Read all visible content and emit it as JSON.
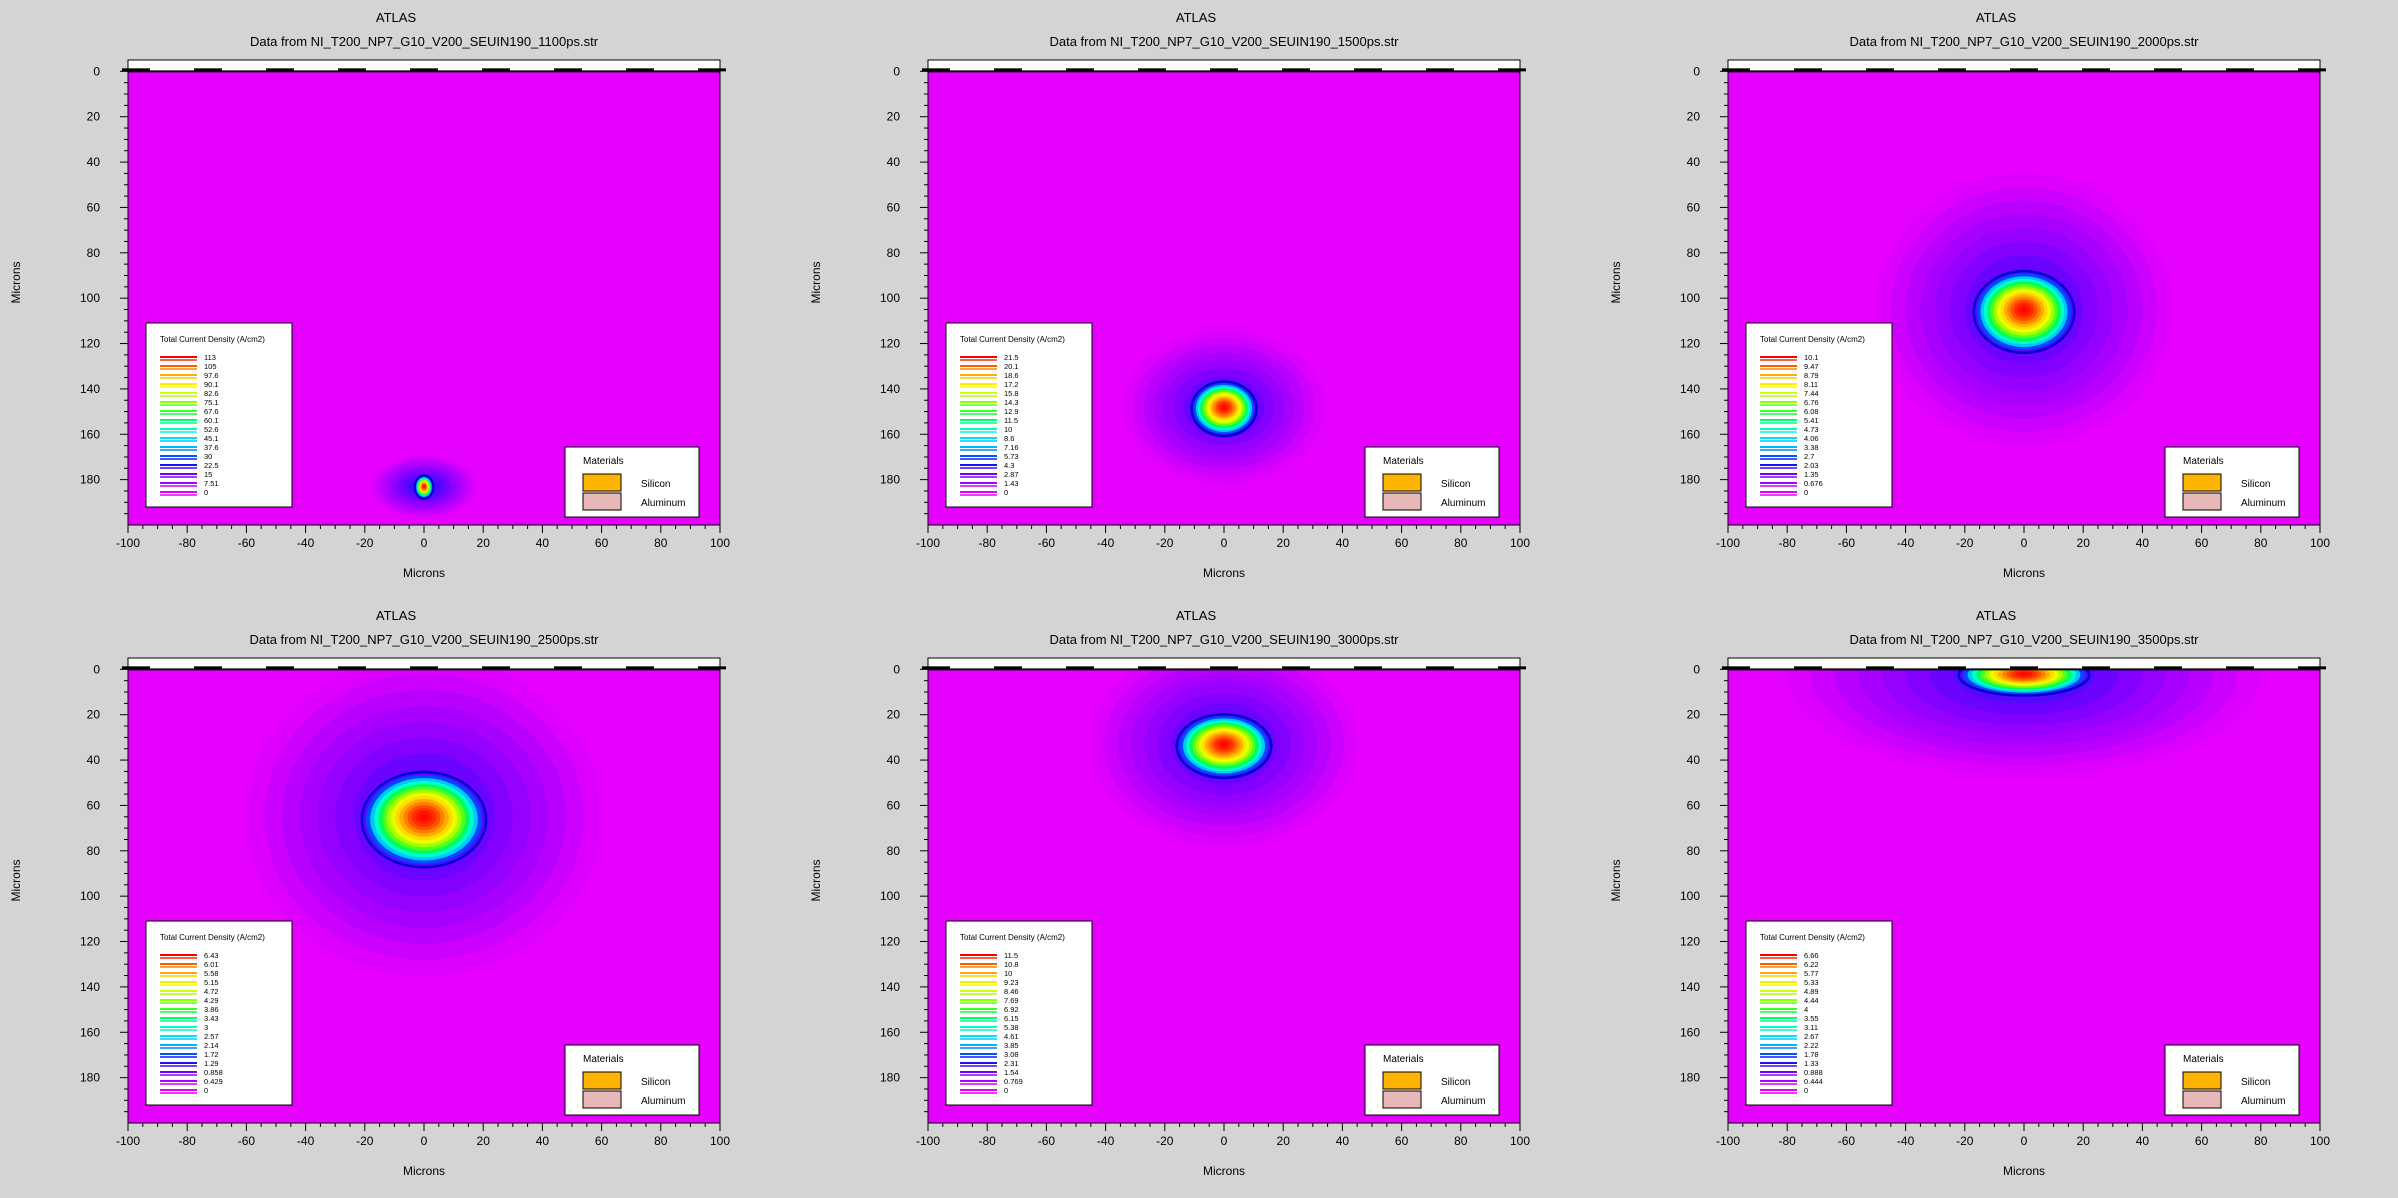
{
  "colors": {
    "background": "#d4d4d4",
    "silicon": "#ffb400",
    "aluminum": "#e8b8b8",
    "base_field": "#e600ff"
  },
  "legend_title": "Materials",
  "materials": [
    "Silicon",
    "Aluminum"
  ],
  "chart_data": [
    {
      "type": "heatmap",
      "program": "ATLAS",
      "title": "Data from NI_T200_NP7_G10_V200_SEUIN190_1100ps.str",
      "xlabel": "Microns",
      "ylabel": "Microns",
      "xlim": [
        -100,
        100
      ],
      "ylim": [
        200,
        -5
      ],
      "xticks": [
        -100,
        -80,
        -60,
        -40,
        -20,
        0,
        20,
        40,
        60,
        80,
        100
      ],
      "yticks": [
        0,
        20,
        40,
        60,
        80,
        100,
        120,
        140,
        160,
        180
      ],
      "colorbar_title": "Total Current Density (A/cm2)",
      "colorbar_values": [
        "113",
        "105",
        "97.6",
        "90.1",
        "82.6",
        "75.1",
        "67.6",
        "60.1",
        "52.6",
        "45.1",
        "37.6",
        "30",
        "22.5",
        "15",
        "7.51",
        "0"
      ],
      "peak": {
        "x": 0,
        "y": 183,
        "value": 113
      },
      "spread": {
        "sx": 3,
        "sy": 5
      },
      "halo": {
        "sx": 18,
        "sy": 14,
        "level": 0.22
      }
    },
    {
      "type": "heatmap",
      "program": "ATLAS",
      "title": "Data from NI_T200_NP7_G10_V200_SEUIN190_1500ps.str",
      "xlabel": "Microns",
      "ylabel": "Microns",
      "xlim": [
        -100,
        100
      ],
      "ylim": [
        200,
        -5
      ],
      "xticks": [
        -100,
        -80,
        -60,
        -40,
        -20,
        0,
        20,
        40,
        60,
        80,
        100
      ],
      "yticks": [
        0,
        20,
        40,
        60,
        80,
        100,
        120,
        140,
        160,
        180
      ],
      "colorbar_title": "Total Current Density (A/cm2)",
      "colorbar_values": [
        "21.5",
        "20.1",
        "18.6",
        "17.2",
        "15.8",
        "14.3",
        "12.9",
        "11.5",
        "10",
        "8.6",
        "7.16",
        "5.73",
        "4.3",
        "2.87",
        "1.43",
        "0"
      ],
      "peak": {
        "x": 0,
        "y": 148,
        "value": 21.5
      },
      "spread": {
        "sx": 11,
        "sy": 12
      },
      "halo": {
        "sx": 34,
        "sy": 34,
        "level": 0.2
      }
    },
    {
      "type": "heatmap",
      "program": "ATLAS",
      "title": "Data from NI_T200_NP7_G10_V200_SEUIN190_2000ps.str",
      "xlabel": "Microns",
      "ylabel": "Microns",
      "xlim": [
        -100,
        100
      ],
      "ylim": [
        200,
        -5
      ],
      "xticks": [
        -100,
        -80,
        -60,
        -40,
        -20,
        0,
        20,
        40,
        60,
        80,
        100
      ],
      "yticks": [
        0,
        20,
        40,
        60,
        80,
        100,
        120,
        140,
        160,
        180
      ],
      "colorbar_title": "Total Current Density (A/cm2)",
      "colorbar_values": [
        "10.1",
        "9.47",
        "8.79",
        "8.11",
        "7.44",
        "6.76",
        "6.08",
        "5.41",
        "4.73",
        "4.06",
        "3.38",
        "2.7",
        "2.03",
        "1.35",
        "0.676",
        "0"
      ],
      "peak": {
        "x": 0,
        "y": 105,
        "value": 10.1
      },
      "spread": {
        "sx": 17,
        "sy": 18
      },
      "halo": {
        "sx": 50,
        "sy": 60,
        "level": 0.2
      }
    },
    {
      "type": "heatmap",
      "program": "ATLAS",
      "title": "Data from NI_T200_NP7_G10_V200_SEUIN190_2500ps.str",
      "xlabel": "Microns",
      "ylabel": "Microns",
      "xlim": [
        -100,
        100
      ],
      "ylim": [
        200,
        -5
      ],
      "xticks": [
        -100,
        -80,
        -60,
        -40,
        -20,
        0,
        20,
        40,
        60,
        80,
        100
      ],
      "yticks": [
        0,
        20,
        40,
        60,
        80,
        100,
        120,
        140,
        160,
        180
      ],
      "colorbar_title": "Total Current Density (A/cm2)",
      "colorbar_values": [
        "6.43",
        "6.01",
        "5.58",
        "5.15",
        "4.72",
        "4.29",
        "3.86",
        "3.43",
        "3",
        "2.57",
        "2.14",
        "1.72",
        "1.29",
        "0.858",
        "0.429",
        "0"
      ],
      "peak": {
        "x": 0,
        "y": 65,
        "value": 6.43
      },
      "spread": {
        "sx": 21,
        "sy": 21
      },
      "halo": {
        "sx": 60,
        "sy": 70,
        "level": 0.2
      }
    },
    {
      "type": "heatmap",
      "program": "ATLAS",
      "title": "Data from NI_T200_NP7_G10_V200_SEUIN190_3000ps.str",
      "xlabel": "Microns",
      "ylabel": "Microns",
      "xlim": [
        -100,
        100
      ],
      "ylim": [
        200,
        -5
      ],
      "xticks": [
        -100,
        -80,
        -60,
        -40,
        -20,
        0,
        20,
        40,
        60,
        80,
        100
      ],
      "yticks": [
        0,
        20,
        40,
        60,
        80,
        100,
        120,
        140,
        160,
        180
      ],
      "colorbar_title": "Total Current Density (A/cm2)",
      "colorbar_values": [
        "11.5",
        "10.8",
        "10",
        "9.23",
        "8.46",
        "7.69",
        "6.92",
        "6.15",
        "5.38",
        "4.61",
        "3.85",
        "3.08",
        "2.31",
        "1.54",
        "0.769",
        "0"
      ],
      "peak": {
        "x": 0,
        "y": 33,
        "value": 11.5
      },
      "spread": {
        "sx": 16,
        "sy": 14
      },
      "halo": {
        "sx": 45,
        "sy": 45,
        "level": 0.2
      }
    },
    {
      "type": "heatmap",
      "program": "ATLAS",
      "title": "Data from NI_T200_NP7_G10_V200_SEUIN190_3500ps.str",
      "xlabel": "Microns",
      "ylabel": "Microns",
      "xlim": [
        -100,
        100
      ],
      "ylim": [
        200,
        -5
      ],
      "xticks": [
        -100,
        -80,
        -60,
        -40,
        -20,
        0,
        20,
        40,
        60,
        80,
        100
      ],
      "yticks": [
        0,
        20,
        40,
        60,
        80,
        100,
        120,
        140,
        160,
        180
      ],
      "colorbar_title": "Total Current Density (A/cm2)",
      "colorbar_values": [
        "6.66",
        "6.22",
        "5.77",
        "5.33",
        "4.89",
        "4.44",
        "4",
        "3.55",
        "3.11",
        "2.67",
        "2.22",
        "1.78",
        "1.33",
        "0.888",
        "0.444",
        "0"
      ],
      "peak": {
        "x": 0,
        "y": 2,
        "value": 6.66
      },
      "spread": {
        "sx": 22,
        "sy": 9
      },
      "halo": {
        "sx": 80,
        "sy": 45,
        "level": 0.2
      }
    }
  ]
}
